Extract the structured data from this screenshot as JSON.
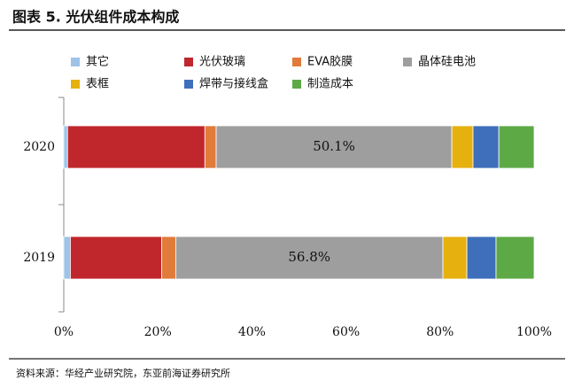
{
  "chart_data": {
    "type": "stacked_barh",
    "title": "图表 5.   光伏组件成本构成",
    "source": "资料来源：华经产业研究院，东亚前海证券研究所",
    "categories": [
      "2020",
      "2019"
    ],
    "series": [
      {
        "name": "其它",
        "color": "#9dc3e6",
        "values": [
          0.8,
          1.4
        ]
      },
      {
        "name": "光伏玻璃",
        "color": "#c0272d",
        "values": [
          29.2,
          19.4
        ]
      },
      {
        "name": "EVA胶膜",
        "color": "#e07b39",
        "values": [
          2.4,
          3.0
        ]
      },
      {
        "name": "晶体硅电池",
        "color": "#9e9e9e",
        "values": [
          50.1,
          56.8
        ],
        "value_labels": [
          "50.1%",
          "56.8%"
        ]
      },
      {
        "name": "表框",
        "color": "#e6b00f",
        "values": [
          4.5,
          5.1
        ]
      },
      {
        "name": "焊带与接线盒",
        "color": "#3f6fba",
        "values": [
          5.5,
          6.2
        ]
      },
      {
        "name": "制造成本",
        "color": "#5da946",
        "values": [
          7.5,
          8.1
        ]
      }
    ],
    "xlim": [
      0,
      100
    ],
    "xticks": [
      {
        "value": 0,
        "label": "0%"
      },
      {
        "value": 20,
        "label": "20%"
      },
      {
        "value": 40,
        "label": "40%"
      },
      {
        "value": 60,
        "label": "60%"
      },
      {
        "value": 80,
        "label": "80%"
      },
      {
        "value": 100,
        "label": "100%"
      }
    ]
  }
}
